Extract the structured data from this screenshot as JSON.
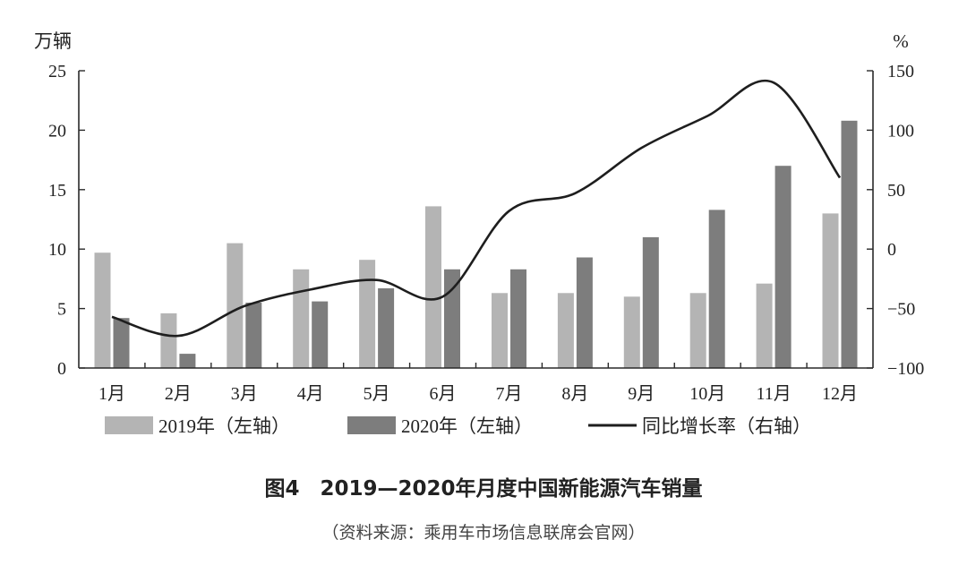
{
  "chart_data": {
    "type": "bar",
    "title": "图4　2019—2020年月度中国新能源汽车销量",
    "source": "（资料来源：乘用车市场信息联席会官网）",
    "ylabel_left": "万辆",
    "ylabel_right": "%",
    "categories": [
      "1月",
      "2月",
      "3月",
      "4月",
      "5月",
      "6月",
      "7月",
      "8月",
      "9月",
      "10月",
      "11月",
      "12月"
    ],
    "ylim_left": [
      0,
      25
    ],
    "yticks_left": [
      "0",
      "5",
      "10",
      "15",
      "20",
      "25"
    ],
    "ylim_right": [
      -100,
      150
    ],
    "yticks_right": [
      "-100",
      "-50",
      "0",
      "50",
      "100",
      "150"
    ],
    "grid": false,
    "legend_position": "bottom",
    "series": [
      {
        "name": "2019年（左轴）",
        "kind": "bar",
        "axis": "left",
        "color": "#b4b4b4",
        "values": [
          9.7,
          4.6,
          10.5,
          8.3,
          9.1,
          13.6,
          6.3,
          6.3,
          6.0,
          6.3,
          7.1,
          13.0
        ]
      },
      {
        "name": "2020年（左轴）",
        "kind": "bar",
        "axis": "left",
        "color": "#7d7d7d",
        "values": [
          4.2,
          1.2,
          5.5,
          5.6,
          6.7,
          8.3,
          8.3,
          9.3,
          11.0,
          13.3,
          17.0,
          20.8
        ]
      },
      {
        "name": "同比增长率（右轴）",
        "kind": "line",
        "axis": "right",
        "color": "#1e1e1e",
        "values": [
          -57,
          -73,
          -48,
          -34,
          -26,
          -40,
          32,
          47,
          85,
          112,
          140,
          60
        ]
      }
    ]
  }
}
